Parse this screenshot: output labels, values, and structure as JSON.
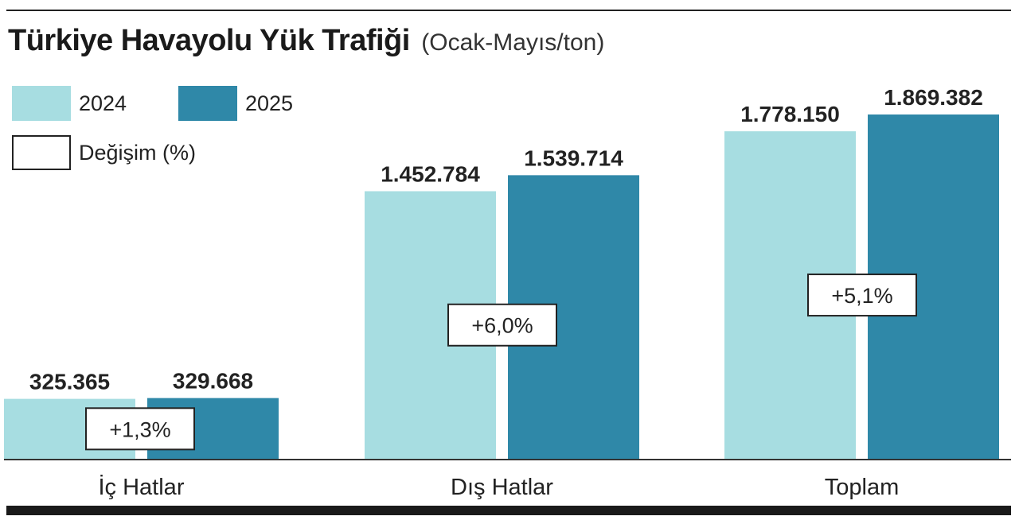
{
  "title": "Türkiye Havayolu Yük Trafiği",
  "subtitle": "(Ocak-Mayıs/ton)",
  "legend": {
    "series_2024": "2024",
    "series_2025": "2025",
    "change": "Değişim (%)"
  },
  "colors": {
    "series_2024": "#a7dde1",
    "series_2025": "#2f88a8",
    "change_box": "#ffffff",
    "text": "#222222"
  },
  "chart_data": {
    "type": "bar",
    "title": "Türkiye Havayolu Yük Trafiği",
    "subtitle": "(Ocak-Mayıs/ton)",
    "categories": [
      "İç Hatlar",
      "Dış Hatlar",
      "Toplam"
    ],
    "series": [
      {
        "name": "2024",
        "values": [
          325365,
          1452784,
          1778150
        ],
        "labels": [
          "325.365",
          "1.452.784",
          "1.778.150"
        ]
      },
      {
        "name": "2025",
        "values": [
          329668,
          1539714,
          1869382
        ],
        "labels": [
          "329.668",
          "1.539.714",
          "1.869.382"
        ]
      }
    ],
    "change_labels": [
      "+1,3%",
      "+6,0%",
      "+5,1%"
    ],
    "change_legend": "Değişim (%)",
    "ylim": [
      0,
      1869382
    ],
    "grid": false,
    "legend_position": "top-left"
  }
}
